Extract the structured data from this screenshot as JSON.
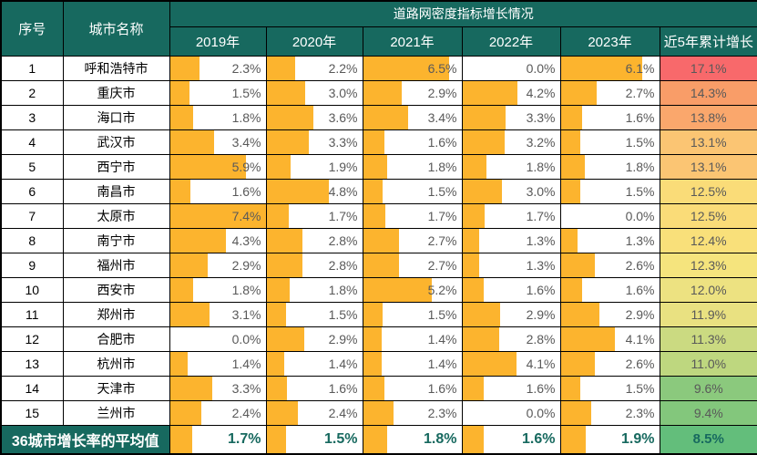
{
  "table": {
    "bar_max": 7.4,
    "colors": {
      "teal": "#17695F",
      "bar_orange": "#FCB42E",
      "value_text": "#595959"
    },
    "header": {
      "col_index": "序号",
      "col_city": "城市名称",
      "group_title": "道路网密度指标增长情况",
      "years": [
        "2019年",
        "2020年",
        "2021年",
        "2022年",
        "2023年"
      ],
      "col_cumulative": "近5年累计增长"
    },
    "rows": [
      {
        "no": "1",
        "city": "呼和浩特市",
        "values": [
          "2.3%",
          "2.2%",
          "6.5%",
          "0.0%",
          "6.1%"
        ],
        "cum": {
          "text": "17.1%",
          "color": "#F8696B"
        }
      },
      {
        "no": "2",
        "city": "重庆市",
        "values": [
          "1.5%",
          "3.0%",
          "2.9%",
          "4.2%",
          "2.7%"
        ],
        "cum": {
          "text": "14.3%",
          "color": "#F99D68"
        }
      },
      {
        "no": "3",
        "city": "海口市",
        "values": [
          "1.8%",
          "3.6%",
          "3.4%",
          "3.3%",
          "1.6%"
        ],
        "cum": {
          "text": "13.8%",
          "color": "#FAA76C"
        }
      },
      {
        "no": "4",
        "city": "武汉市",
        "values": [
          "3.4%",
          "3.3%",
          "1.6%",
          "3.2%",
          "1.5%"
        ],
        "cum": {
          "text": "13.1%",
          "color": "#FBC573"
        }
      },
      {
        "no": "5",
        "city": "西宁市",
        "values": [
          "5.9%",
          "1.9%",
          "1.8%",
          "1.8%",
          "1.8%"
        ],
        "cum": {
          "text": "13.1%",
          "color": "#FBC573"
        }
      },
      {
        "no": "6",
        "city": "南昌市",
        "values": [
          "1.6%",
          "4.8%",
          "1.5%",
          "3.0%",
          "1.5%"
        ],
        "cum": {
          "text": "12.5%",
          "color": "#FADC78"
        }
      },
      {
        "no": "7",
        "city": "太原市",
        "values": [
          "7.4%",
          "1.7%",
          "1.7%",
          "1.7%",
          "0.0%"
        ],
        "cum": {
          "text": "12.5%",
          "color": "#FADC78"
        }
      },
      {
        "no": "8",
        "city": "南宁市",
        "values": [
          "4.3%",
          "2.8%",
          "2.7%",
          "1.3%",
          "1.3%"
        ],
        "cum": {
          "text": "12.4%",
          "color": "#F9E07A"
        }
      },
      {
        "no": "9",
        "city": "福州市",
        "values": [
          "2.9%",
          "2.8%",
          "2.7%",
          "1.3%",
          "2.6%"
        ],
        "cum": {
          "text": "12.3%",
          "color": "#F5E47D"
        }
      },
      {
        "no": "10",
        "city": "西安市",
        "values": [
          "1.8%",
          "1.8%",
          "5.2%",
          "1.6%",
          "1.6%"
        ],
        "cum": {
          "text": "12.0%",
          "color": "#EDE281"
        }
      },
      {
        "no": "11",
        "city": "郑州市",
        "values": [
          "3.1%",
          "1.5%",
          "1.5%",
          "2.9%",
          "2.9%"
        ],
        "cum": {
          "text": "11.9%",
          "color": "#E9E181"
        }
      },
      {
        "no": "12",
        "city": "合肥市",
        "values": [
          "0.0%",
          "2.9%",
          "1.4%",
          "2.8%",
          "4.1%"
        ],
        "cum": {
          "text": "11.3%",
          "color": "#CBDA81"
        }
      },
      {
        "no": "13",
        "city": "杭州市",
        "values": [
          "1.4%",
          "1.4%",
          "1.4%",
          "4.1%",
          "2.6%"
        ],
        "cum": {
          "text": "11.0%",
          "color": "#BED77F"
        }
      },
      {
        "no": "14",
        "city": "天津市",
        "values": [
          "3.3%",
          "1.6%",
          "1.6%",
          "1.6%",
          "1.5%"
        ],
        "cum": {
          "text": "9.6%",
          "color": "#8BC97D"
        }
      },
      {
        "no": "15",
        "city": "兰州市",
        "values": [
          "2.4%",
          "2.4%",
          "2.3%",
          "0.0%",
          "2.3%"
        ],
        "cum": {
          "text": "9.4%",
          "color": "#83C77C"
        }
      }
    ],
    "footer": {
      "label": "36城市增长率的平均值",
      "values": [
        "1.7%",
        "1.5%",
        "1.8%",
        "1.6%",
        "1.9%"
      ],
      "cum": {
        "text": "8.5%",
        "color": "#63BE7B"
      }
    }
  }
}
